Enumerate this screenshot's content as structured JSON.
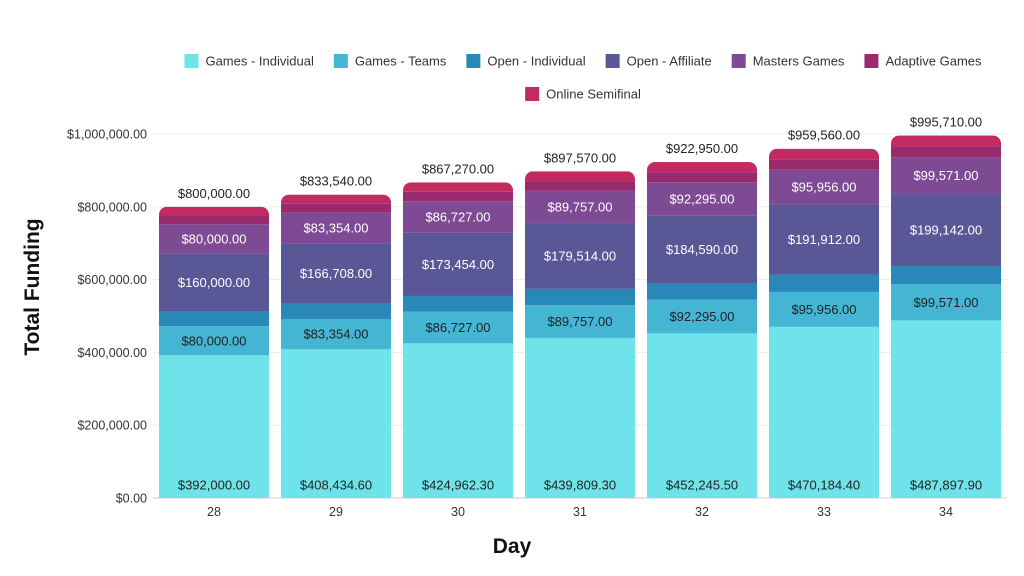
{
  "chart_data": {
    "type": "bar",
    "stacked": true,
    "xlabel": "Day",
    "ylabel": "Total Funding",
    "ylim": [
      0,
      1000000
    ],
    "y_ticks": [
      0,
      200000,
      400000,
      600000,
      800000,
      1000000
    ],
    "y_tick_labels": [
      "$0.00",
      "$200,000.00",
      "$400,000.00",
      "$600,000.00",
      "$800,000.00",
      "$1,000,000.00"
    ],
    "categories": [
      "28",
      "29",
      "30",
      "31",
      "32",
      "33",
      "34"
    ],
    "grid": true,
    "legend_position": "top",
    "series": [
      {
        "name": "Games - Individual",
        "color": "#6ee4ea",
        "values": [
          392000.0,
          408434.6,
          424962.3,
          439809.3,
          452245.5,
          470184.4,
          487897.9
        ],
        "labels": [
          "$392,000.00",
          "$408,434.60",
          "$424,962.30",
          "$439,809.30",
          "$452,245.50",
          "$470,184.40",
          "$487,897.90"
        ]
      },
      {
        "name": "Games - Teams",
        "color": "#44b6d4",
        "values": [
          80000.0,
          83354.0,
          86727.0,
          89757.0,
          92295.0,
          95956.0,
          99571.0
        ],
        "labels": [
          "$80,000.00",
          "$83,354.00",
          "$86,727.00",
          "$89,757.00",
          "$92,295.00",
          "$95,956.00",
          "$99,571.00"
        ]
      },
      {
        "name": "Open - Individual",
        "color": "#2a88b8",
        "values": [
          40000,
          41677,
          43363.5,
          44878.5,
          46147.5,
          47978,
          49785.5
        ],
        "labels": []
      },
      {
        "name": "Open - Affiliate",
        "color": "#5a5796",
        "values": [
          160000.0,
          166708.0,
          173454.0,
          179514.0,
          184590.0,
          191912.0,
          199142.0
        ],
        "labels": [
          "$160,000.00",
          "$166,708.00",
          "$173,454.00",
          "$179,514.00",
          "$184,590.00",
          "$191,912.00",
          "$199,142.00"
        ]
      },
      {
        "name": "Masters Games",
        "color": "#7e4a94",
        "values": [
          80000.0,
          83354.0,
          86727.0,
          89757.0,
          92295.0,
          95956.0,
          99571.0
        ],
        "labels": [
          "$80,000.00",
          "$83,354.00",
          "$86,727.00",
          "$89,757.00",
          "$92,295.00",
          "$95,956.00",
          "$99,571.00"
        ]
      },
      {
        "name": "Adaptive Games",
        "color": "#9a2a6e",
        "values": [
          24000,
          25006.2,
          26018.1,
          26927.1,
          27688.5,
          28786.8,
          29871.3
        ],
        "labels": []
      },
      {
        "name": "Online Semifinal",
        "color": "#c22a62",
        "values": [
          24000,
          25006.2,
          26018.1,
          26927.1,
          27688.5,
          28786.8,
          29871.3
        ],
        "labels": []
      }
    ],
    "totals": [
      800000,
      833540,
      867270,
      897570,
      922950,
      959560,
      995710
    ],
    "total_labels": [
      "$800,000.00",
      "$833,540.00",
      "$867,270.00",
      "$897,570.00",
      "$922,950.00",
      "$959,560.00",
      "$995,710.00"
    ]
  }
}
